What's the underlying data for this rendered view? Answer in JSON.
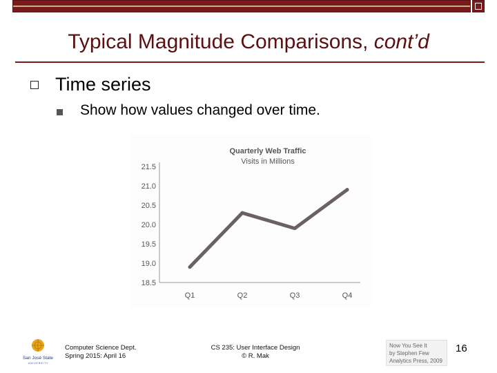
{
  "slide": {
    "title_main": "Typical Magnitude Comparisons, ",
    "title_italic": "cont’d",
    "bullet_level1": "Time series",
    "bullet_level2": "Show how values changed over time.",
    "page_number": "16"
  },
  "footer": {
    "dept_line1": "Computer Science Dept.",
    "dept_line2": "Spring 2015: April 16",
    "course_line1": "CS 235: User Interface Design",
    "course_line2": "© R. Mak",
    "credit_line1": "Now You See It",
    "credit_line2": "by Stephen Few",
    "credit_line3": "Analytics Press, 2009",
    "logo_text_line1": "San José State",
    "logo_text_line2": "U N I V E R S I T Y"
  },
  "chart_data": {
    "type": "line",
    "title": "Quarterly Web Traffic",
    "subtitle": "Visits in Millions",
    "categories": [
      "Q1",
      "Q2",
      "Q3",
      "Q4"
    ],
    "series": [
      {
        "values": [
          18.9,
          20.3,
          19.9,
          20.9
        ]
      }
    ],
    "y_ticks": [
      "21.5",
      "21.0",
      "20.5",
      "20.0",
      "19.5",
      "19.0",
      "18.5"
    ],
    "ylim": [
      18.5,
      21.5
    ],
    "grid": false,
    "line_color": "#6b6066"
  },
  "colors": {
    "accent": "#7b1a1a",
    "title": "#5a1010"
  }
}
